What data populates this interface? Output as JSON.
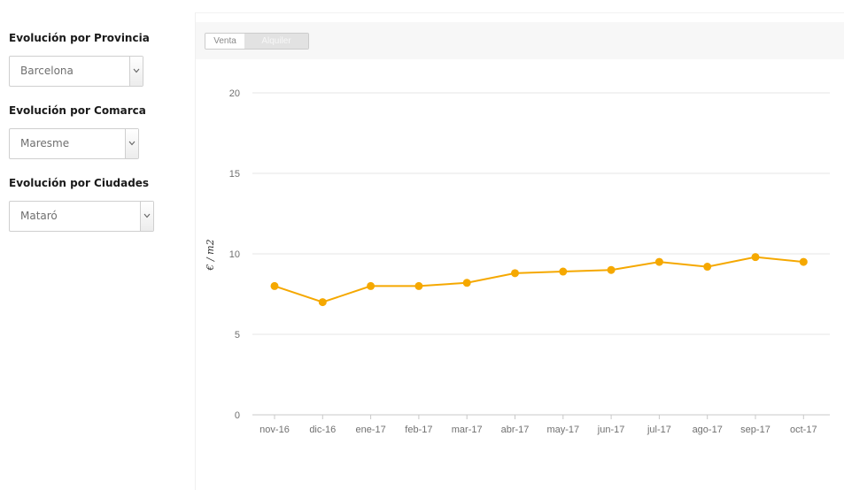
{
  "filters": [
    {
      "label": "Evolución por Provincia",
      "value": "Barcelona"
    },
    {
      "label": "Evolución por Comarca",
      "value": "Maresme"
    },
    {
      "label": "Evolución por Ciudades",
      "value": "Mataró"
    }
  ],
  "toggle": {
    "options": [
      "Venta",
      "Alquiler"
    ],
    "selected": "Alquiler"
  },
  "colors": {
    "series": "#f5a800",
    "grid": "#e6e6e6",
    "toolbar_bg": "#f7f7f7"
  },
  "chart_data": {
    "type": "line",
    "title": "",
    "xlabel": "",
    "ylabel": "€ / m2",
    "ylim": [
      0,
      20
    ],
    "yticks": [
      0,
      5,
      10,
      15,
      20
    ],
    "grid": true,
    "categories": [
      "nov-16",
      "dic-16",
      "ene-17",
      "feb-17",
      "mar-17",
      "abr-17",
      "may-17",
      "jun-17",
      "jul-17",
      "ago-17",
      "sep-17",
      "oct-17"
    ],
    "series": [
      {
        "values": [
          8.0,
          7.0,
          8.0,
          8.0,
          8.2,
          8.8,
          8.9,
          9.0,
          9.5,
          9.2,
          9.8,
          9.5
        ]
      }
    ]
  }
}
